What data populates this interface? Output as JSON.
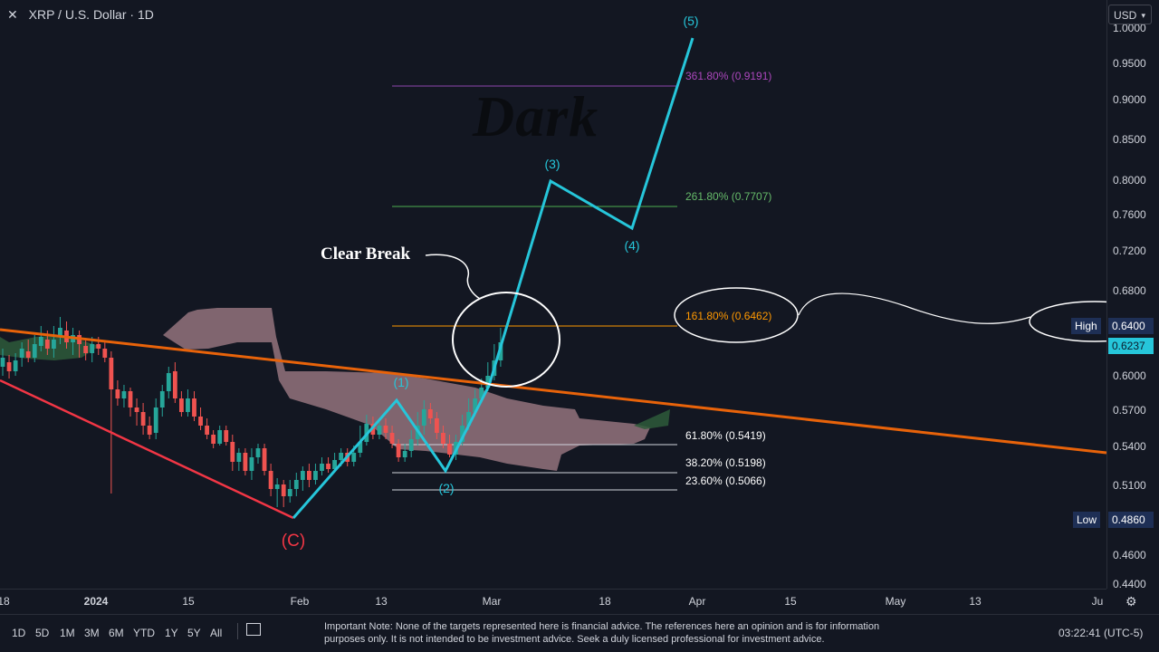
{
  "header": {
    "close_glyph": "✕",
    "symbol": "XRP / U.S. Dollar · 1D"
  },
  "currency": {
    "label": "USD",
    "chevron": "▾"
  },
  "price_axis": {
    "ticks": [
      "1.0000",
      "0.9500",
      "0.9000",
      "0.8500",
      "0.8000",
      "0.7600",
      "0.7200",
      "0.6800",
      "0.6400",
      "0.6000",
      "0.5700",
      "0.5400",
      "0.5100",
      "0.4860",
      "0.4600",
      "0.4400"
    ],
    "high_label": "High",
    "high_value": "0.6400",
    "low_label": "Low",
    "low_value": "0.4860",
    "last_value": "0.6237"
  },
  "time_axis": {
    "ticks": [
      "18",
      "2024",
      "15",
      "Feb",
      "13",
      "Mar",
      "18",
      "Apr",
      "15",
      "May",
      "13",
      "Ju"
    ]
  },
  "fib_labels": {
    "f3618": "361.80% (0.9191)",
    "f2618": "261.80% (0.7707)",
    "f1618": "161.80% (0.6462)",
    "f618": "61.80% (0.5419)",
    "f382": "38.20% (0.5198)",
    "f236": "23.60% (0.5066)"
  },
  "waves": {
    "w1": "(1)",
    "w2": "(2)",
    "w3": "(3)",
    "w4": "(4)",
    "w5": "(5)",
    "wc": "(C)"
  },
  "annotation": {
    "clear_break": "Clear Break",
    "watermark": "Dark"
  },
  "ranges": [
    "1D",
    "5D",
    "1M",
    "3M",
    "6M",
    "YTD",
    "1Y",
    "5Y",
    "All"
  ],
  "note": "Important Note: None of the targets represented here is financial advice. The references here an opinion and is for information purposes only. It is not intended to be investment advice. Seek a duly licensed professional for investment advice.",
  "clock": "03:22:41 (UTC-5)",
  "colors": {
    "background": "#131722",
    "up": "#26a69a",
    "down": "#ef5350",
    "wave": "#26c6da",
    "trendline": "#e8630a",
    "wedge": "#f23645",
    "cloud": "#c99aa4"
  },
  "icons": {
    "settings": "gear-icon",
    "date_range": "calendar-icon"
  }
}
